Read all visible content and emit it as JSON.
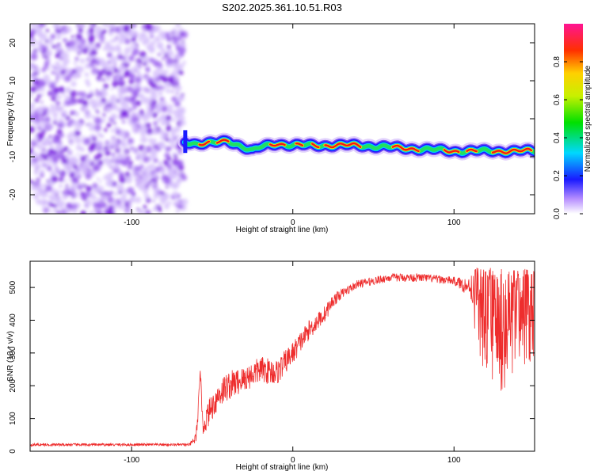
{
  "title": "S202.2025.361.10.51.R03",
  "colors": {
    "snr_line": "#ee2d2d",
    "frame": "#000000",
    "background": "#ffffff"
  },
  "chart_data": [
    {
      "type": "heatmap",
      "name": "spectrogram",
      "xlabel": "Height of straight line (km)",
      "ylabel": "Frequency (Hz)",
      "xlim": [
        -163,
        150
      ],
      "ylim": [
        -25,
        25
      ],
      "xticks": [
        -100,
        0,
        100
      ],
      "xticks_labels": [
        "-100",
        "0",
        "100"
      ],
      "yticks": [
        -20,
        -10,
        0,
        10,
        20
      ],
      "yticks_labels": [
        "-20",
        "-10",
        "0",
        "10",
        "20"
      ],
      "noise_region_x": [
        -163,
        -67
      ],
      "signal_track": [
        {
          "x": -67,
          "y": -6.0
        },
        {
          "x": -60,
          "y": -6.5
        },
        {
          "x": -50,
          "y": -6.5
        },
        {
          "x": -40,
          "y": -5.8
        },
        {
          "x": -30,
          "y": -7.5
        },
        {
          "x": -25,
          "y": -8.5
        },
        {
          "x": -20,
          "y": -7.5
        },
        {
          "x": -10,
          "y": -6.5
        },
        {
          "x": 0,
          "y": -7.0
        },
        {
          "x": 10,
          "y": -7.0
        },
        {
          "x": 20,
          "y": -7.0
        },
        {
          "x": 40,
          "y": -7.0
        },
        {
          "x": 60,
          "y": -7.5
        },
        {
          "x": 80,
          "y": -8.0
        },
        {
          "x": 100,
          "y": -8.5
        },
        {
          "x": 120,
          "y": -8.5
        },
        {
          "x": 150,
          "y": -8.5
        }
      ],
      "colorbar": {
        "label": "Normalized spectral amplitude",
        "range": [
          0,
          1
        ],
        "ticks": [
          0.0,
          0.2,
          0.4,
          0.6,
          0.8
        ],
        "ticks_labels": [
          "0.0",
          "0.2",
          "0.4",
          "0.6",
          "0.8"
        ]
      }
    },
    {
      "type": "line",
      "name": "snr",
      "xlabel": "Height of straight line (km)",
      "ylabel": "SNR (10 * v/v)",
      "xlim": [
        -163,
        150
      ],
      "ylim": [
        0,
        580
      ],
      "xticks": [
        -100,
        0,
        100
      ],
      "xticks_labels": [
        "-100",
        "0",
        "100"
      ],
      "yticks": [
        0,
        100,
        200,
        300,
        400,
        500
      ],
      "yticks_labels": [
        "0",
        "100",
        "200",
        "300",
        "400",
        "500"
      ],
      "series": [
        {
          "name": "SNR",
          "x": [
            -163,
            -120,
            -80,
            -64,
            -60,
            -57,
            -56,
            -52,
            -45,
            -40,
            -30,
            -20,
            -10,
            0,
            10,
            20,
            25,
            30,
            40,
            60,
            80,
            100,
            110,
            115,
            120,
            130,
            140,
            150
          ],
          "y": [
            20,
            20,
            20,
            20,
            40,
            250,
            70,
            120,
            180,
            200,
            220,
            250,
            240,
            300,
            370,
            420,
            460,
            480,
            510,
            530,
            530,
            520,
            500,
            380,
            350,
            300,
            350,
            380
          ],
          "spread": [
            8,
            8,
            8,
            8,
            40,
            60,
            60,
            80,
            90,
            90,
            80,
            80,
            80,
            70,
            60,
            50,
            40,
            30,
            25,
            25,
            25,
            25,
            60,
            250,
            330,
            380,
            330,
            250
          ]
        }
      ]
    }
  ]
}
